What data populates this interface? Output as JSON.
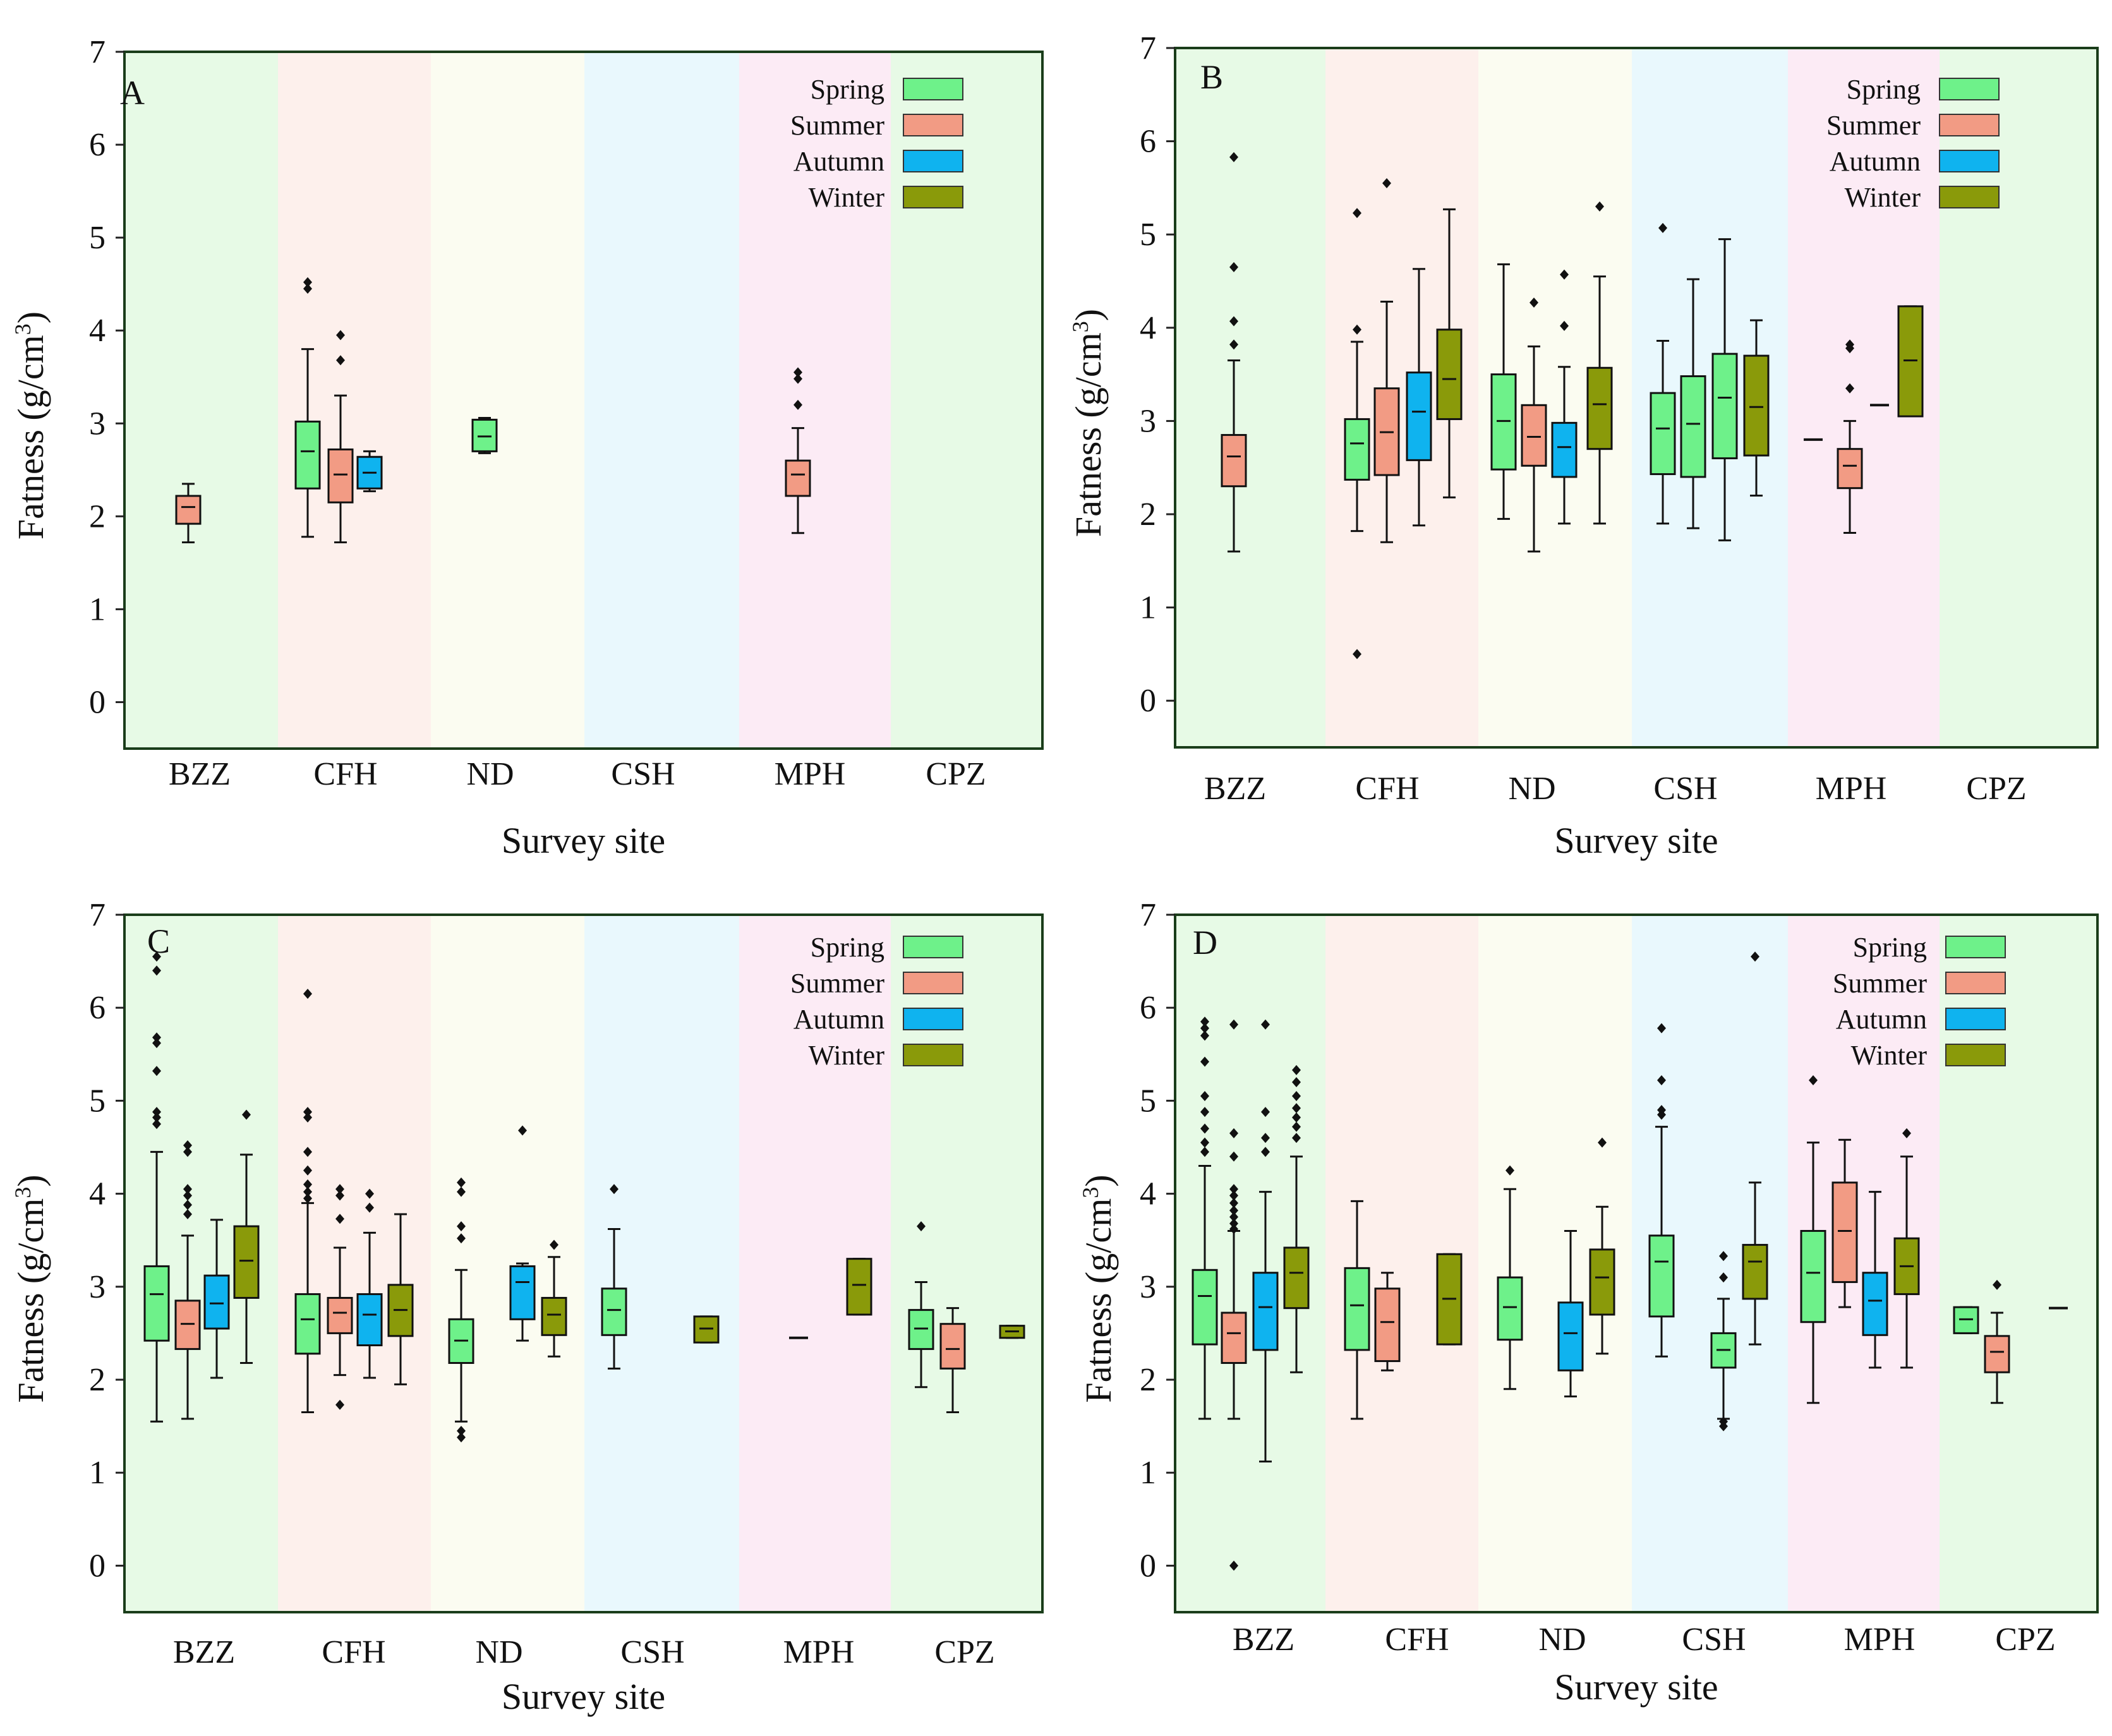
{
  "figure": {
    "seasons": [
      "Spring",
      "Summer",
      "Autumn",
      "Winter"
    ],
    "season_colors": {
      "Spring": "#6ef18a",
      "Summer": "#f29b84",
      "Autumn": "#0fb3ef",
      "Winter": "#8a9a0a"
    },
    "site_background_colors": [
      "#e7fae6",
      "#fdf0ec",
      "#fbfcf1",
      "#e9f8fd",
      "#fcebf5",
      "#e7fae6"
    ],
    "sites": [
      "BZZ",
      "CFH",
      "ND",
      "CSH",
      "MPH",
      "CPZ"
    ],
    "ylabel": "Fatness (g/cm",
    "ylabel_sup": "3",
    "ylabel_tail": ")",
    "xlabel": "Survey site",
    "yticks": [
      "0",
      "1",
      "2",
      "3",
      "4",
      "5",
      "6",
      "7"
    ]
  },
  "chart_data": [
    {
      "type": "box",
      "panel": "A",
      "title": "A",
      "xlabel": "Survey site",
      "ylabel": "Fatness (g/cm3)",
      "ylim": [
        -0.5,
        7
      ],
      "categories": [
        "BZZ",
        "CFH",
        "ND",
        "CSH",
        "MPH",
        "CPZ"
      ],
      "legend": [
        "Spring",
        "Summer",
        "Autumn",
        "Winter"
      ],
      "boxes": [
        {
          "site": "BZZ",
          "season": "Summer",
          "whisker_low": 1.72,
          "q1": 1.92,
          "median": 2.1,
          "q3": 2.22,
          "whisker_high": 2.35,
          "outliers": []
        },
        {
          "site": "CFH",
          "season": "Spring",
          "whisker_low": 1.78,
          "q1": 2.3,
          "median": 2.7,
          "q3": 3.02,
          "whisker_high": 3.8,
          "outliers": [
            4.45,
            4.52
          ]
        },
        {
          "site": "CFH",
          "season": "Summer",
          "whisker_low": 1.72,
          "q1": 2.15,
          "median": 2.45,
          "q3": 2.72,
          "whisker_high": 3.3,
          "outliers": [
            3.68,
            3.95
          ]
        },
        {
          "site": "CFH",
          "season": "Autumn",
          "whisker_low": 2.27,
          "q1": 2.3,
          "median": 2.47,
          "q3": 2.64,
          "whisker_high": 2.7,
          "outliers": []
        },
        {
          "site": "ND",
          "season": "Spring",
          "whisker_low": 2.68,
          "q1": 2.7,
          "median": 2.86,
          "q3": 3.04,
          "whisker_high": 3.06,
          "outliers": []
        },
        {
          "site": "MPH",
          "season": "Summer",
          "whisker_low": 1.82,
          "q1": 2.22,
          "median": 2.45,
          "q3": 2.6,
          "whisker_high": 2.95,
          "outliers": [
            3.2,
            3.48,
            3.55
          ]
        }
      ]
    },
    {
      "type": "box",
      "panel": "B",
      "title": "B",
      "xlabel": "Survey site",
      "ylabel": "Fatness (g/cm3)",
      "ylim": [
        -0.5,
        7
      ],
      "categories": [
        "BZZ",
        "CFH",
        "ND",
        "CSH",
        "MPH",
        "CPZ"
      ],
      "legend": [
        "Spring",
        "Summer",
        "Autumn",
        "Winter"
      ],
      "boxes": [
        {
          "site": "BZZ",
          "season": "Summer",
          "whisker_low": 1.6,
          "q1": 2.3,
          "median": 2.62,
          "q3": 2.85,
          "whisker_high": 3.65,
          "outliers": [
            3.82,
            4.07,
            4.65,
            5.83
          ]
        },
        {
          "site": "CFH",
          "season": "Spring",
          "whisker_low": 1.82,
          "q1": 2.37,
          "median": 2.76,
          "q3": 3.02,
          "whisker_high": 3.85,
          "outliers": [
            0.5,
            3.98,
            5.23
          ]
        },
        {
          "site": "CFH",
          "season": "Summer",
          "whisker_low": 1.7,
          "q1": 2.42,
          "median": 2.88,
          "q3": 3.35,
          "whisker_high": 4.28,
          "outliers": [
            5.55
          ]
        },
        {
          "site": "CFH",
          "season": "Autumn",
          "whisker_low": 1.88,
          "q1": 2.58,
          "median": 3.1,
          "q3": 3.52,
          "whisker_high": 4.63,
          "outliers": []
        },
        {
          "site": "CFH",
          "season": "Winter",
          "whisker_low": 2.18,
          "q1": 3.02,
          "median": 3.45,
          "q3": 3.98,
          "whisker_high": 5.27,
          "outliers": []
        },
        {
          "site": "ND",
          "season": "Spring",
          "whisker_low": 1.95,
          "q1": 2.48,
          "median": 3.0,
          "q3": 3.5,
          "whisker_high": 4.68,
          "outliers": []
        },
        {
          "site": "ND",
          "season": "Summer",
          "whisker_low": 1.6,
          "q1": 2.52,
          "median": 2.83,
          "q3": 3.17,
          "whisker_high": 3.8,
          "outliers": [
            4.27
          ]
        },
        {
          "site": "ND",
          "season": "Autumn",
          "whisker_low": 1.9,
          "q1": 2.4,
          "median": 2.72,
          "q3": 2.98,
          "whisker_high": 3.58,
          "outliers": [
            4.02,
            4.57
          ]
        },
        {
          "site": "ND",
          "season": "Winter",
          "whisker_low": 1.9,
          "q1": 2.7,
          "median": 3.18,
          "q3": 3.57,
          "whisker_high": 4.55,
          "outliers": [
            5.3
          ]
        },
        {
          "site": "CSH",
          "season": "Spring",
          "whisker_low": 1.9,
          "q1": 2.43,
          "median": 2.92,
          "q3": 3.3,
          "whisker_high": 3.86,
          "outliers": [
            5.07
          ]
        },
        {
          "site": "CSH",
          "season": "Spring",
          "whisker_low": 1.85,
          "q1": 2.4,
          "median": 2.97,
          "q3": 3.48,
          "whisker_high": 4.52,
          "outliers": []
        },
        {
          "site": "CSH",
          "season": "Spring",
          "whisker_low": 1.72,
          "q1": 2.6,
          "median": 3.25,
          "q3": 3.72,
          "whisker_high": 4.95,
          "outliers": []
        },
        {
          "site": "CSH",
          "season": "Winter",
          "whisker_low": 2.2,
          "q1": 2.63,
          "median": 3.15,
          "q3": 3.7,
          "whisker_high": 4.08,
          "outliers": []
        },
        {
          "site": "MPH",
          "season": "Spring",
          "whisker_low": 2.8,
          "q1": 2.8,
          "median": 2.8,
          "q3": 2.8,
          "whisker_high": 2.8,
          "outliers": []
        },
        {
          "site": "MPH",
          "season": "Summer",
          "whisker_low": 1.8,
          "q1": 2.28,
          "median": 2.52,
          "q3": 2.7,
          "whisker_high": 3.0,
          "outliers": [
            3.35,
            3.78,
            3.82
          ]
        },
        {
          "site": "MPH",
          "season": "Autumn",
          "whisker_low": 3.17,
          "q1": 3.17,
          "median": 3.17,
          "q3": 3.17,
          "whisker_high": 3.17,
          "outliers": []
        },
        {
          "site": "MPH",
          "season": "Winter",
          "whisker_low": 3.05,
          "q1": 3.05,
          "median": 3.65,
          "q3": 4.23,
          "whisker_high": 4.23,
          "outliers": []
        }
      ]
    },
    {
      "type": "box",
      "panel": "C",
      "title": "C",
      "xlabel": "Survey site",
      "ylabel": "Fatness (g/cm3)",
      "ylim": [
        -0.5,
        7
      ],
      "categories": [
        "BZZ",
        "CFH",
        "ND",
        "CSH",
        "MPH",
        "CPZ"
      ],
      "legend": [
        "Spring",
        "Summer",
        "Autumn",
        "Winter"
      ],
      "boxes": [
        {
          "site": "BZZ",
          "season": "Spring",
          "whisker_low": 1.55,
          "q1": 2.42,
          "median": 2.92,
          "q3": 3.22,
          "whisker_high": 4.45,
          "outliers": [
            4.75,
            4.82,
            4.88,
            5.32,
            5.62,
            5.68,
            6.4,
            6.55
          ]
        },
        {
          "site": "BZZ",
          "season": "Summer",
          "whisker_low": 1.58,
          "q1": 2.33,
          "median": 2.6,
          "q3": 2.85,
          "whisker_high": 3.55,
          "outliers": [
            3.78,
            3.88,
            3.98,
            4.05,
            4.45,
            4.52
          ]
        },
        {
          "site": "BZZ",
          "season": "Autumn",
          "whisker_low": 2.02,
          "q1": 2.55,
          "median": 2.82,
          "q3": 3.12,
          "whisker_high": 3.72,
          "outliers": []
        },
        {
          "site": "BZZ",
          "season": "Winter",
          "whisker_low": 2.18,
          "q1": 2.88,
          "median": 3.28,
          "q3": 3.65,
          "whisker_high": 4.42,
          "outliers": [
            4.85
          ]
        },
        {
          "site": "CFH",
          "season": "Spring",
          "whisker_low": 1.65,
          "q1": 2.28,
          "median": 2.65,
          "q3": 2.92,
          "whisker_high": 3.9,
          "outliers": [
            3.95,
            4.02,
            4.1,
            4.25,
            4.45,
            4.82,
            4.88,
            6.15
          ]
        },
        {
          "site": "CFH",
          "season": "Summer",
          "whisker_low": 2.05,
          "q1": 2.5,
          "median": 2.72,
          "q3": 2.88,
          "whisker_high": 3.42,
          "outliers": [
            1.73,
            3.73,
            3.98,
            4.05
          ]
        },
        {
          "site": "CFH",
          "season": "Autumn",
          "whisker_low": 2.02,
          "q1": 2.37,
          "median": 2.7,
          "q3": 2.92,
          "whisker_high": 3.58,
          "outliers": [
            3.85,
            4.0
          ]
        },
        {
          "site": "CFH",
          "season": "Winter",
          "whisker_low": 1.95,
          "q1": 2.47,
          "median": 2.75,
          "q3": 3.02,
          "whisker_high": 3.78,
          "outliers": []
        },
        {
          "site": "ND",
          "season": "Spring",
          "whisker_low": 1.55,
          "q1": 2.18,
          "median": 2.42,
          "q3": 2.65,
          "whisker_high": 3.18,
          "outliers": [
            1.38,
            1.45,
            3.52,
            3.65,
            4.02,
            4.12
          ]
        },
        {
          "site": "ND",
          "season": "Autumn",
          "whisker_low": 2.42,
          "q1": 2.65,
          "median": 3.05,
          "q3": 3.22,
          "whisker_high": 3.25,
          "outliers": [
            4.68
          ]
        },
        {
          "site": "ND",
          "season": "Winter",
          "whisker_low": 2.25,
          "q1": 2.48,
          "median": 2.7,
          "q3": 2.88,
          "whisker_high": 3.32,
          "outliers": [
            3.45
          ]
        },
        {
          "site": "CSH",
          "season": "Spring",
          "whisker_low": 2.12,
          "q1": 2.48,
          "median": 2.75,
          "q3": 2.98,
          "whisker_high": 3.62,
          "outliers": [
            4.05
          ]
        },
        {
          "site": "CSH",
          "season": "Winter",
          "whisker_low": 2.4,
          "q1": 2.4,
          "median": 2.55,
          "q3": 2.68,
          "whisker_high": 2.68,
          "outliers": []
        },
        {
          "site": "MPH",
          "season": "Spring",
          "whisker_low": 2.45,
          "q1": 2.45,
          "median": 2.45,
          "q3": 2.45,
          "whisker_high": 2.45,
          "outliers": []
        },
        {
          "site": "MPH",
          "season": "Winter",
          "whisker_low": 2.7,
          "q1": 2.7,
          "median": 3.02,
          "q3": 3.3,
          "whisker_high": 3.3,
          "outliers": []
        },
        {
          "site": "CPZ",
          "season": "Spring",
          "whisker_low": 1.92,
          "q1": 2.33,
          "median": 2.55,
          "q3": 2.75,
          "whisker_high": 3.05,
          "outliers": [
            3.65
          ]
        },
        {
          "site": "CPZ",
          "season": "Summer",
          "whisker_low": 1.65,
          "q1": 2.12,
          "median": 2.33,
          "q3": 2.6,
          "whisker_high": 2.77,
          "outliers": []
        },
        {
          "site": "CPZ",
          "season": "Winter",
          "whisker_low": 2.45,
          "q1": 2.45,
          "median": 2.52,
          "q3": 2.58,
          "whisker_high": 2.58,
          "outliers": []
        }
      ]
    },
    {
      "type": "box",
      "panel": "D",
      "title": "D",
      "xlabel": "Survey site",
      "ylabel": "Fatness (g/cm3)",
      "ylim": [
        -0.5,
        7
      ],
      "categories": [
        "BZZ",
        "CFH",
        "ND",
        "CSH",
        "MPH",
        "CPZ"
      ],
      "legend": [
        "Spring",
        "Summer",
        "Autumn",
        "Winter"
      ],
      "boxes": [
        {
          "site": "BZZ",
          "season": "Spring",
          "whisker_low": 1.58,
          "q1": 2.38,
          "median": 2.9,
          "q3": 3.18,
          "whisker_high": 4.3,
          "outliers": [
            4.45,
            4.55,
            4.7,
            4.88,
            5.05,
            5.42,
            5.7,
            5.78,
            5.85
          ]
        },
        {
          "site": "BZZ",
          "season": "Summer",
          "whisker_low": 1.58,
          "q1": 2.18,
          "median": 2.5,
          "q3": 2.72,
          "whisker_high": 3.6,
          "outliers": [
            0.0,
            3.62,
            3.68,
            3.75,
            3.82,
            3.9,
            3.98,
            4.05,
            4.4,
            4.65,
            5.82
          ]
        },
        {
          "site": "BZZ",
          "season": "Autumn",
          "whisker_low": 1.12,
          "q1": 2.32,
          "median": 2.78,
          "q3": 3.15,
          "whisker_high": 4.02,
          "outliers": [
            4.45,
            4.6,
            4.88,
            5.82
          ]
        },
        {
          "site": "BZZ",
          "season": "Winter",
          "whisker_low": 2.08,
          "q1": 2.77,
          "median": 3.15,
          "q3": 3.42,
          "whisker_high": 4.4,
          "outliers": [
            4.6,
            4.72,
            4.82,
            4.92,
            5.05,
            5.2,
            5.33
          ]
        },
        {
          "site": "CFH",
          "season": "Spring",
          "whisker_low": 1.58,
          "q1": 2.32,
          "median": 2.8,
          "q3": 3.2,
          "whisker_high": 3.92,
          "outliers": []
        },
        {
          "site": "CFH",
          "season": "Summer",
          "whisker_low": 2.1,
          "q1": 2.2,
          "median": 2.62,
          "q3": 2.98,
          "whisker_high": 3.15,
          "outliers": []
        },
        {
          "site": "CFH",
          "season": "Winter",
          "whisker_low": 2.38,
          "q1": 2.38,
          "median": 2.87,
          "q3": 3.35,
          "whisker_high": 3.35,
          "outliers": []
        },
        {
          "site": "ND",
          "season": "Spring",
          "whisker_low": 1.9,
          "q1": 2.43,
          "median": 2.78,
          "q3": 3.1,
          "whisker_high": 4.05,
          "outliers": [
            4.25
          ]
        },
        {
          "site": "ND",
          "season": "Autumn",
          "whisker_low": 1.82,
          "q1": 2.1,
          "median": 2.5,
          "q3": 2.83,
          "whisker_high": 3.6,
          "outliers": []
        },
        {
          "site": "ND",
          "season": "Winter",
          "whisker_low": 2.28,
          "q1": 2.7,
          "median": 3.1,
          "q3": 3.4,
          "whisker_high": 3.86,
          "outliers": [
            4.55
          ]
        },
        {
          "site": "CSH",
          "season": "Spring",
          "whisker_low": 2.25,
          "q1": 2.68,
          "median": 3.27,
          "q3": 3.55,
          "whisker_high": 4.72,
          "outliers": [
            4.85,
            4.9,
            5.22,
            5.78
          ]
        },
        {
          "site": "CSH",
          "season": "Spring",
          "whisker_low": 1.58,
          "q1": 2.13,
          "median": 2.32,
          "q3": 2.5,
          "whisker_high": 2.87,
          "outliers": [
            1.5,
            1.55,
            3.1,
            3.33
          ]
        },
        {
          "site": "CSH",
          "season": "Winter",
          "whisker_low": 2.38,
          "q1": 2.87,
          "median": 3.27,
          "q3": 3.45,
          "whisker_high": 4.12,
          "outliers": [
            6.55
          ]
        },
        {
          "site": "MPH",
          "season": "Spring",
          "whisker_low": 1.75,
          "q1": 2.62,
          "median": 3.15,
          "q3": 3.6,
          "whisker_high": 4.55,
          "outliers": [
            5.22
          ]
        },
        {
          "site": "MPH",
          "season": "Summer",
          "whisker_low": 2.78,
          "q1": 3.05,
          "median": 3.6,
          "q3": 4.12,
          "whisker_high": 4.58,
          "outliers": []
        },
        {
          "site": "MPH",
          "season": "Autumn",
          "whisker_low": 2.13,
          "q1": 2.48,
          "median": 2.85,
          "q3": 3.15,
          "whisker_high": 4.02,
          "outliers": []
        },
        {
          "site": "MPH",
          "season": "Winter",
          "whisker_low": 2.13,
          "q1": 2.92,
          "median": 3.22,
          "q3": 3.52,
          "whisker_high": 4.4,
          "outliers": [
            4.65
          ]
        },
        {
          "site": "CPZ",
          "season": "Spring",
          "whisker_low": 2.5,
          "q1": 2.5,
          "median": 2.65,
          "q3": 2.78,
          "whisker_high": 2.78,
          "outliers": []
        },
        {
          "site": "CPZ",
          "season": "Summer",
          "whisker_low": 1.75,
          "q1": 2.08,
          "median": 2.3,
          "q3": 2.47,
          "whisker_high": 2.72,
          "outliers": [
            3.02
          ]
        },
        {
          "site": "CPZ",
          "season": "Winter",
          "whisker_low": 2.77,
          "q1": 2.77,
          "median": 2.77,
          "q3": 2.77,
          "whisker_high": 2.77,
          "outliers": []
        }
      ]
    }
  ]
}
